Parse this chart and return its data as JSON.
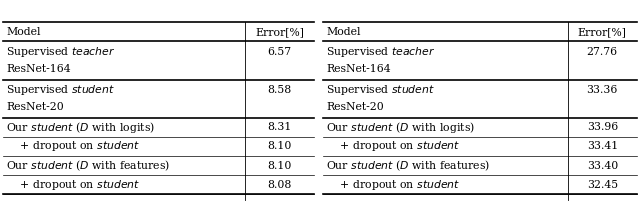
{
  "left_table": {
    "col_header": [
      "Model",
      "Error[%]"
    ],
    "rows": [
      {
        "cells": [
          "Supervised $\\it{teacher}$",
          "ResNet-164",
          "6.57"
        ],
        "multiline": true,
        "thick_after": true
      },
      {
        "cells": [
          "Supervised $\\it{student}$",
          "ResNet-20",
          "8.58"
        ],
        "multiline": true,
        "thick_after": true
      },
      {
        "cells": [
          "Our $\\it{student}$ ($D$ with logits)",
          "",
          "8.31"
        ],
        "multiline": false,
        "thick_after": false
      },
      {
        "cells": [
          "    + dropout on $\\it{student}$",
          "",
          "8.10"
        ],
        "multiline": false,
        "thick_after": false
      },
      {
        "cells": [
          "Our $\\it{student}$ ($D$ with features)",
          "",
          "8.10"
        ],
        "multiline": false,
        "thick_after": false
      },
      {
        "cells": [
          "    + dropout on $\\it{student}$",
          "",
          "8.08"
        ],
        "multiline": false,
        "thick_after": false
      }
    ]
  },
  "right_table": {
    "col_header": [
      "Model",
      "Error[%]"
    ],
    "rows": [
      {
        "cells": [
          "Supervised $\\it{teacher}$",
          "ResNet-164",
          "27.76"
        ],
        "multiline": true,
        "thick_after": true
      },
      {
        "cells": [
          "Supervised $\\it{student}$",
          "ResNet-20",
          "33.36"
        ],
        "multiline": true,
        "thick_after": true
      },
      {
        "cells": [
          "Our $\\it{student}$ ($D$ with logits)",
          "",
          "33.96"
        ],
        "multiline": false,
        "thick_after": false
      },
      {
        "cells": [
          "    + dropout on $\\it{student}$",
          "",
          "33.41"
        ],
        "multiline": false,
        "thick_after": false
      },
      {
        "cells": [
          "Our $\\it{student}$ ($D$ with features)",
          "",
          "33.40"
        ],
        "multiline": false,
        "thick_after": false
      },
      {
        "cells": [
          "    + dropout on $\\it{student}$",
          "",
          "32.45"
        ],
        "multiline": false,
        "thick_after": false
      }
    ]
  },
  "fontsize": 7.8,
  "bg_color": "#ffffff",
  "line_color": "#000000",
  "col_split": 0.78,
  "thick_lw": 1.2,
  "thin_lw": 0.5
}
